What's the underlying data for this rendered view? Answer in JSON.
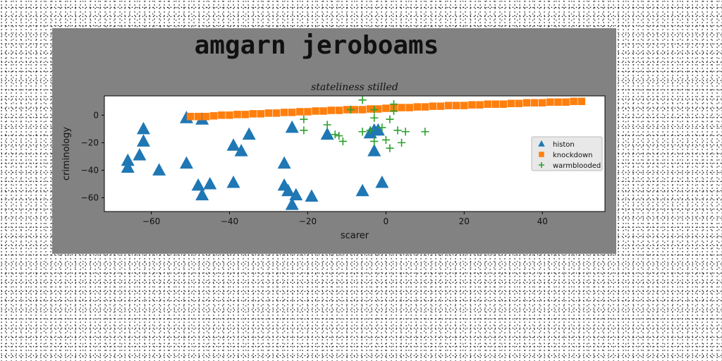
{
  "figure": {
    "title": "amgarn jeroboams"
  },
  "chart_data": {
    "type": "scatter",
    "title": "stateliness stilled",
    "xlabel": "scarer",
    "ylabel": "criminology",
    "xlim": [
      -72,
      56
    ],
    "ylim": [
      -70,
      14
    ],
    "xticks": [
      -60,
      -40,
      -20,
      0,
      20,
      40
    ],
    "yticks": [
      0,
      -20,
      -40,
      -60
    ],
    "grid": false,
    "legend_position": "right",
    "colors": {
      "histon": "#1f77b4",
      "knockdown": "#ff7f0e",
      "warmblooded": "#2ca02c"
    },
    "series": [
      {
        "name": "histon",
        "marker": "triangle",
        "points": [
          [
            -51,
            -2
          ],
          [
            -47,
            -3
          ],
          [
            -62,
            -10
          ],
          [
            -62,
            -19
          ],
          [
            -63,
            -29
          ],
          [
            -66,
            -33
          ],
          [
            -66,
            -38
          ],
          [
            -58,
            -40
          ],
          [
            -51,
            -35
          ],
          [
            -48,
            -51
          ],
          [
            -47,
            -58
          ],
          [
            -45,
            -50
          ],
          [
            -39,
            -49
          ],
          [
            -39,
            -22
          ],
          [
            -37,
            -26
          ],
          [
            -35,
            -14
          ],
          [
            -26,
            -35
          ],
          [
            -26,
            -51
          ],
          [
            -25,
            -55
          ],
          [
            -23,
            -58
          ],
          [
            -24,
            -65
          ],
          [
            -19,
            -59
          ],
          [
            -24,
            -9
          ],
          [
            -15,
            -14
          ],
          [
            -6,
            -55
          ],
          [
            -1,
            -49
          ],
          [
            -4,
            -13
          ],
          [
            -3,
            -11
          ],
          [
            -2,
            -11
          ],
          [
            -3,
            -26
          ]
        ]
      },
      {
        "name": "knockdown",
        "marker": "square",
        "points": [
          [
            -50,
            -1
          ],
          [
            -48,
            -1
          ],
          [
            -46,
            -1
          ],
          [
            -44,
            -0.5
          ],
          [
            -42,
            0
          ],
          [
            -40,
            0
          ],
          [
            -38,
            0.5
          ],
          [
            -36,
            0.5
          ],
          [
            -34,
            1
          ],
          [
            -32,
            1
          ],
          [
            -30,
            1.5
          ],
          [
            -28,
            1.5
          ],
          [
            -26,
            2
          ],
          [
            -24,
            2
          ],
          [
            -22,
            2.5
          ],
          [
            -20,
            2.5
          ],
          [
            -18,
            3
          ],
          [
            -16,
            3
          ],
          [
            -14,
            3.5
          ],
          [
            -12,
            3.5
          ],
          [
            -10,
            4
          ],
          [
            -8,
            4
          ],
          [
            -6,
            4
          ],
          [
            -4,
            4.5
          ],
          [
            -2,
            4.5
          ],
          [
            0,
            5
          ],
          [
            2,
            5
          ],
          [
            4,
            5.5
          ],
          [
            6,
            5.5
          ],
          [
            8,
            6
          ],
          [
            10,
            6
          ],
          [
            12,
            6.5
          ],
          [
            14,
            6.5
          ],
          [
            16,
            7
          ],
          [
            18,
            7
          ],
          [
            20,
            7
          ],
          [
            22,
            7.5
          ],
          [
            24,
            7.5
          ],
          [
            26,
            8
          ],
          [
            28,
            8
          ],
          [
            30,
            8
          ],
          [
            32,
            8.5
          ],
          [
            34,
            8.5
          ],
          [
            36,
            9
          ],
          [
            38,
            9
          ],
          [
            40,
            9
          ],
          [
            42,
            9.5
          ],
          [
            44,
            9.5
          ],
          [
            46,
            9.5
          ],
          [
            48,
            10
          ],
          [
            50,
            10
          ]
        ]
      },
      {
        "name": "warmblooded",
        "marker": "plus",
        "points": [
          [
            -21,
            -3
          ],
          [
            -21,
            -11
          ],
          [
            -15,
            -7
          ],
          [
            -13,
            -14
          ],
          [
            -12,
            -15
          ],
          [
            -11,
            -19
          ],
          [
            -9,
            4
          ],
          [
            -6,
            11
          ],
          [
            -6,
            -12
          ],
          [
            -4,
            -11
          ],
          [
            -3,
            4
          ],
          [
            -3,
            -2
          ],
          [
            -3,
            -19
          ],
          [
            -1,
            -9
          ],
          [
            0,
            -18
          ],
          [
            1,
            -3
          ],
          [
            1,
            -24
          ],
          [
            2,
            8
          ],
          [
            2,
            3
          ],
          [
            3,
            -11
          ],
          [
            4,
            -20
          ],
          [
            5,
            -12
          ],
          [
            10,
            -12
          ]
        ]
      }
    ]
  }
}
